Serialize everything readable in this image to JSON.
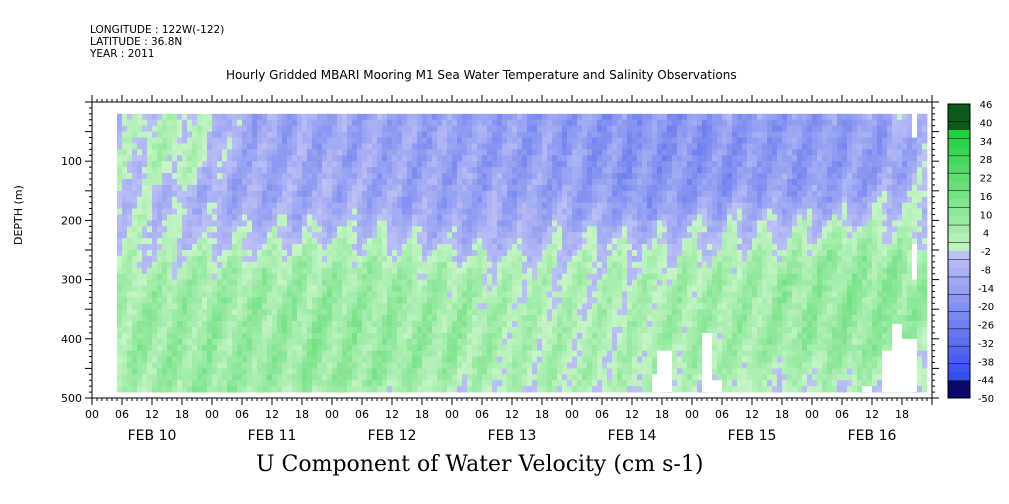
{
  "meta": {
    "longitude": "LONGITUDE : 122W(-122)",
    "latitude": "LATITUDE : 36.8N",
    "year": "YEAR : 2011"
  },
  "title": "Hourly Gridded MBARI Mooring M1 Sea Water Temperature and Salinity Observations",
  "bottom_title": "U Component of Water Velocity (cm s-1)",
  "chart_data": {
    "type": "heatmap",
    "title": "Hourly Gridded MBARI Mooring M1 Sea Water Temperature and Salinity Observations",
    "variable": "U Component of Water Velocity (cm s-1)",
    "ylabel": "DEPTH (m)",
    "ylim": [
      500,
      0
    ],
    "y_reversed": true,
    "yticks": [
      100,
      200,
      300,
      400,
      500
    ],
    "xlim_hours": [
      0,
      168
    ],
    "x_tick_hours": [
      "00",
      "06",
      "12",
      "18"
    ],
    "days": [
      "FEB 10",
      "FEB 11",
      "FEB 12",
      "FEB 13",
      "FEB 14",
      "FEB 15",
      "FEB 16"
    ],
    "data_start_hour": 5,
    "data_end_hour": 167,
    "data_depth_range": [
      20,
      490
    ],
    "colorbar": {
      "levels": [
        "46",
        "40",
        "34",
        "28",
        "22",
        "16",
        "10",
        "4",
        "-2",
        "-8",
        "-14",
        "-20",
        "-26",
        "-32",
        "-38",
        "-44",
        "-50"
      ],
      "min": -50,
      "max": 52,
      "step": 3,
      "colors_negative": "#4466dd",
      "colors_positive": "#22cc55"
    },
    "pattern": [
      {
        "hours": [
          5,
          36
        ],
        "depths": [
          300,
          490
        ],
        "value": 12
      },
      {
        "hours": [
          12,
          22
        ],
        "depths": [
          50,
          100
        ],
        "value": 10
      },
      {
        "hours": [
          20,
          60
        ],
        "depths": [
          20,
          200
        ],
        "value": -12
      },
      {
        "hours": [
          36,
          60
        ],
        "depths": [
          250,
          450
        ],
        "value": 14
      },
      {
        "hours": [
          56,
          80
        ],
        "depths": [
          300,
          420
        ],
        "value": 12
      },
      {
        "hours": [
          60,
          100
        ],
        "depths": [
          20,
          200
        ],
        "value": -14
      },
      {
        "hours": [
          80,
          110
        ],
        "depths": [
          250,
          490
        ],
        "value": 6
      },
      {
        "hours": [
          96,
          125
        ],
        "depths": [
          20,
          150
        ],
        "value": -20
      },
      {
        "hours": [
          115,
          135
        ],
        "depths": [
          300,
          420
        ],
        "value": 10
      },
      {
        "hours": [
          130,
          160
        ],
        "depths": [
          20,
          150
        ],
        "value": -16
      },
      {
        "hours": [
          140,
          165
        ],
        "depths": [
          250,
          420
        ],
        "value": 14
      }
    ],
    "gaps": [
      {
        "hours": [
          112,
          115
        ],
        "depths": [
          460,
          490
        ]
      },
      {
        "hours": [
          113,
          116
        ],
        "depths": [
          420,
          490
        ]
      },
      {
        "hours": [
          122,
          124
        ],
        "depths": [
          390,
          490
        ]
      },
      {
        "hours": [
          124,
          126
        ],
        "depths": [
          470,
          490
        ]
      },
      {
        "hours": [
          154,
          156
        ],
        "depths": [
          480,
          490
        ]
      },
      {
        "hours": [
          158,
          160
        ],
        "depths": [
          420,
          490
        ]
      },
      {
        "hours": [
          160,
          162
        ],
        "depths": [
          375,
          490
        ]
      },
      {
        "hours": [
          162,
          165
        ],
        "depths": [
          400,
          490
        ]
      },
      {
        "hours": [
          164,
          165
        ],
        "depths": [
          20,
          60
        ]
      },
      {
        "hours": [
          164,
          165
        ],
        "depths": [
          240,
          300
        ]
      }
    ],
    "grid": false,
    "legend": "right colorbar"
  }
}
